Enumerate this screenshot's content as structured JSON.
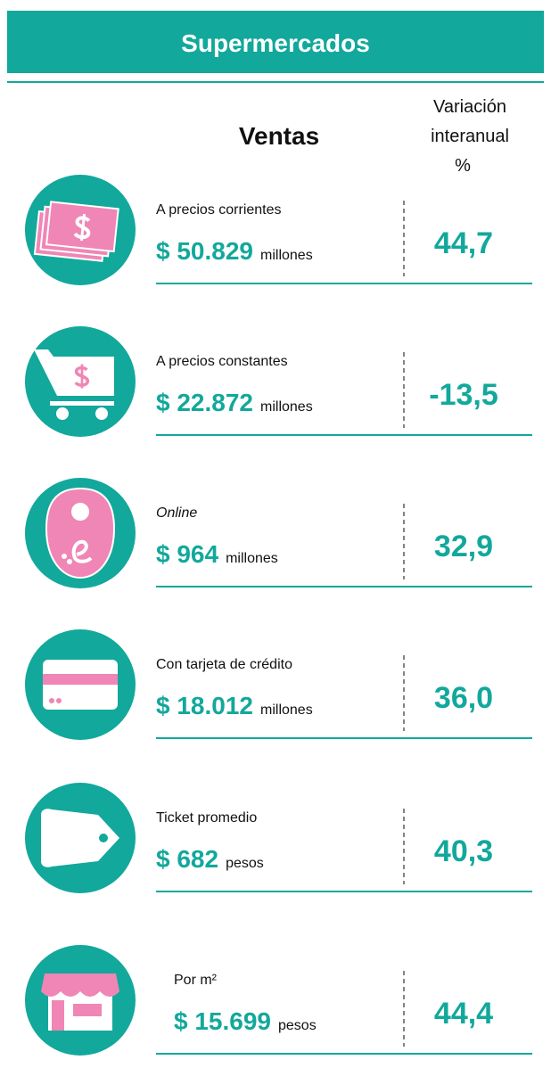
{
  "header": {
    "title": "Supermercados"
  },
  "columns": {
    "sales": "Ventas",
    "variation": [
      "Variación",
      "interanual",
      "%"
    ]
  },
  "rows": [
    {
      "label": "A precios corrientes",
      "amount": "$ 50.829",
      "unit": "millones",
      "variation": "44,7"
    },
    {
      "label": "A precios constantes",
      "amount": "$ 22.872",
      "unit": "millones",
      "variation": "-13,5"
    },
    {
      "label": "Online",
      "amount": "$ 964",
      "unit": "millones",
      "variation": "32,9"
    },
    {
      "label": "Con tarjeta de crédito",
      "amount": "$ 18.012",
      "unit": "millones",
      "variation": "36,0"
    },
    {
      "label": "Ticket promedio",
      "amount": "$ 682",
      "unit": "pesos",
      "variation": "40,3"
    },
    {
      "label": "Por m²",
      "amount": "$ 15.699",
      "unit": "pesos",
      "variation": "44,4"
    }
  ]
}
